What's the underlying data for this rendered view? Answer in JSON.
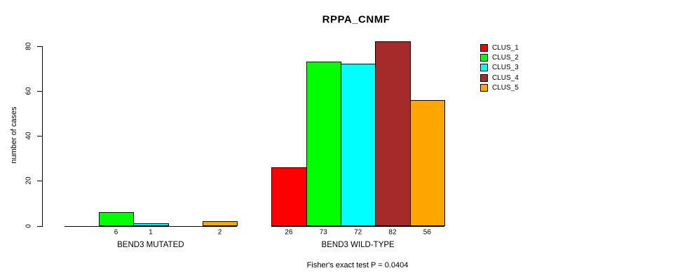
{
  "chart_data": {
    "type": "bar",
    "title": "RPPA_CNMF",
    "ylabel": "number of cases",
    "xlabel": "",
    "ylim": [
      0,
      80
    ],
    "yticks": [
      0,
      20,
      40,
      60,
      80
    ],
    "grid": false,
    "legend_position": "right",
    "categories": [
      "BEND3 MUTATED",
      "BEND3 WILD-TYPE"
    ],
    "series": [
      {
        "name": "CLUS_1",
        "color": "#ff0000",
        "values": [
          0,
          26
        ]
      },
      {
        "name": "CLUS_2",
        "color": "#00ff00",
        "values": [
          6,
          73
        ]
      },
      {
        "name": "CLUS_3",
        "color": "#00ffff",
        "values": [
          1,
          72
        ]
      },
      {
        "name": "CLUS_4",
        "color": "#a52a2a",
        "values": [
          0,
          82
        ]
      },
      {
        "name": "CLUS_5",
        "color": "#ffa500",
        "values": [
          2,
          56
        ]
      }
    ],
    "bar_value_labels_shown": [
      "6",
      "1",
      "2",
      "26",
      "73",
      "72",
      "82",
      "56"
    ],
    "annotation": "Fisher's exact test P = 0.0404"
  }
}
